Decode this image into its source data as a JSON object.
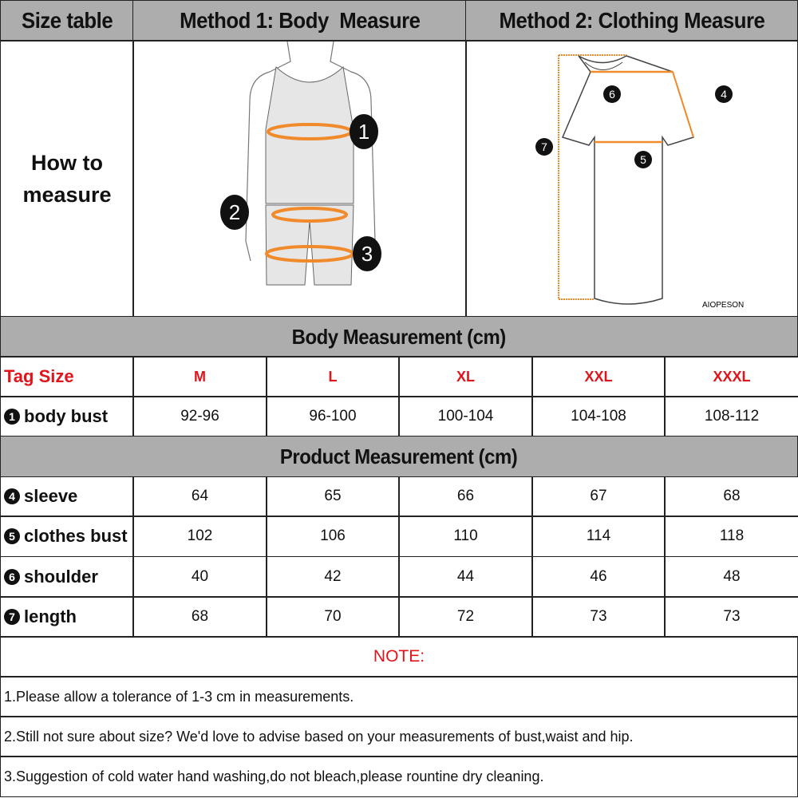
{
  "header": {
    "size_table": "Size table",
    "method1": "Method 1: Body  Measure",
    "method2": "Method 2: Clothing Measure"
  },
  "how_to": {
    "line1": "How to",
    "line2": "measure"
  },
  "figure": {
    "body_markers": [
      "1",
      "2",
      "3"
    ],
    "shirt_markers": [
      "4",
      "5",
      "6",
      "7"
    ],
    "brand": "AIOPESON",
    "accent": "#f08a2a"
  },
  "body_section": {
    "title": "Body Measurement (cm)"
  },
  "tag_row": {
    "label": "Tag Size",
    "sizes": [
      "M",
      "L",
      "XL",
      "XXL",
      "XXXL"
    ]
  },
  "body_rows": [
    {
      "num": "1",
      "label": "body bust",
      "values": [
        "92-96",
        "96-100",
        "100-104",
        "104-108",
        "108-112"
      ]
    }
  ],
  "product_section": {
    "title": "Product Measurement (cm)"
  },
  "product_rows": [
    {
      "num": "4",
      "label": "sleeve",
      "values": [
        "64",
        "65",
        "66",
        "67",
        "68"
      ]
    },
    {
      "num": "5",
      "label": "clothes bust",
      "values": [
        "102",
        "106",
        "110",
        "114",
        "118"
      ]
    },
    {
      "num": "6",
      "label": "shoulder",
      "values": [
        "40",
        "42",
        "44",
        "46",
        "48"
      ]
    },
    {
      "num": "7",
      "label": "length",
      "values": [
        "68",
        "70",
        "72",
        "73",
        "73"
      ]
    }
  ],
  "note": {
    "title": "NOTE:",
    "items": [
      "1.Please allow a tolerance of 1-3 cm in measurements.",
      "2.Still not sure about size? We'd love to advise based on your measurements of bust,waist and hip.",
      "3.Suggestion of cold water hand washing,do not bleach,please rountine dry cleaning."
    ]
  }
}
